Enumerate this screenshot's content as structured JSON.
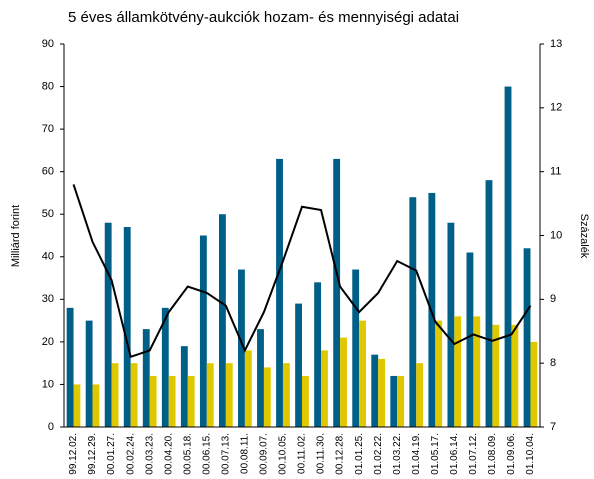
{
  "chart_data": {
    "type": "bar_line",
    "title": "5 éves államkötvény-aukciók hozam- és mennyiségi adatai",
    "ylabel": "Milliárd forint",
    "y2label": "Százalék",
    "categories": [
      "99.12.02.",
      "99.12.29.",
      "00.01.27.",
      "00.02.24.",
      "00.03.23.",
      "00.04.20.",
      "00.05.18.",
      "00.06.15.",
      "00.07.13.",
      "00.08.11.",
      "00.09.07.",
      "00.10.05.",
      "00.11.02.",
      "00.11.30.",
      "00.12.28.",
      "01.01.25.",
      "01.02.22.",
      "01.03.22.",
      "01.04.19.",
      "01.05.17.",
      "01.06.14.",
      "01.07.12.",
      "01.08.09.",
      "01.09.06.",
      "01.10.04."
    ],
    "series": [
      {
        "type": "bar",
        "color": "#005f87",
        "values": [
          28,
          25,
          48,
          47,
          23,
          28,
          19,
          45,
          50,
          37,
          23,
          63,
          29,
          34,
          63,
          37,
          17,
          12,
          54,
          55,
          48,
          41,
          58,
          80,
          42
        ]
      },
      {
        "type": "bar",
        "color": "#e0c800",
        "values": [
          10,
          10,
          15,
          15,
          12,
          12,
          12,
          15,
          15,
          18,
          14,
          15,
          12,
          18,
          21,
          25,
          16,
          12,
          15,
          25,
          26,
          26,
          24,
          24,
          20
        ]
      },
      {
        "type": "line",
        "axis": "y2",
        "color": "#000000",
        "values": [
          10.8,
          9.9,
          9.3,
          8.1,
          8.2,
          8.8,
          9.2,
          9.1,
          8.9,
          8.2,
          8.8,
          9.6,
          10.45,
          10.4,
          9.2,
          8.8,
          9.1,
          9.6,
          9.45,
          8.65,
          8.3,
          8.45,
          8.35,
          8.45,
          8.9
        ]
      }
    ],
    "ylim": [
      0,
      90
    ],
    "yticks": [
      0,
      10,
      20,
      30,
      40,
      50,
      60,
      70,
      80,
      90
    ],
    "y2lim": [
      7,
      13
    ],
    "y2ticks": [
      7,
      8,
      9,
      10,
      11,
      12,
      13
    ]
  }
}
